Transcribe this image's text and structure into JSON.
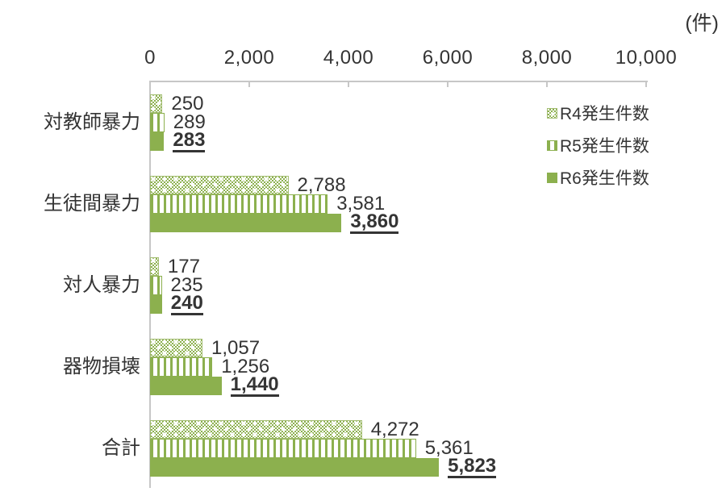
{
  "chart_data": {
    "type": "bar",
    "orientation": "horizontal",
    "unit": "(件)",
    "xlim": [
      0,
      10000
    ],
    "x_ticks": [
      0,
      2000,
      4000,
      6000,
      8000,
      10000
    ],
    "x_tick_labels": [
      "0",
      "2,000",
      "4,000",
      "6,000",
      "8,000",
      "10,000"
    ],
    "categories": [
      "対教師暴力",
      "生徒間暴力",
      "対人暴力",
      "器物損壊",
      "合計"
    ],
    "series": [
      {
        "name": "R4発生件数",
        "key": "r4",
        "pattern": "crosshatch",
        "emphasis": false,
        "values": [
          250,
          2788,
          177,
          1057,
          4272
        ],
        "labels": [
          "250",
          "2,788",
          "177",
          "1,057",
          "4,272"
        ]
      },
      {
        "name": "R5発生件数",
        "key": "r5",
        "pattern": "vertical-stripes",
        "emphasis": false,
        "values": [
          289,
          3581,
          235,
          1256,
          5361
        ],
        "labels": [
          "289",
          "3,581",
          "235",
          "1,256",
          "5,361"
        ]
      },
      {
        "name": "R6発生件数",
        "key": "r6",
        "pattern": "solid",
        "emphasis": true,
        "values": [
          283,
          3860,
          240,
          1440,
          5823
        ],
        "labels": [
          "283",
          "3,860",
          "240",
          "1,440",
          "5,823"
        ]
      }
    ],
    "legend": {
      "position": "top-right-inside",
      "entries": [
        "R4発生件数",
        "R5発生件数",
        "R6発生件数"
      ]
    },
    "grid": false,
    "colors": {
      "green": "#8CB04E",
      "text": "#343434",
      "axis": "#C7C7C7"
    }
  }
}
